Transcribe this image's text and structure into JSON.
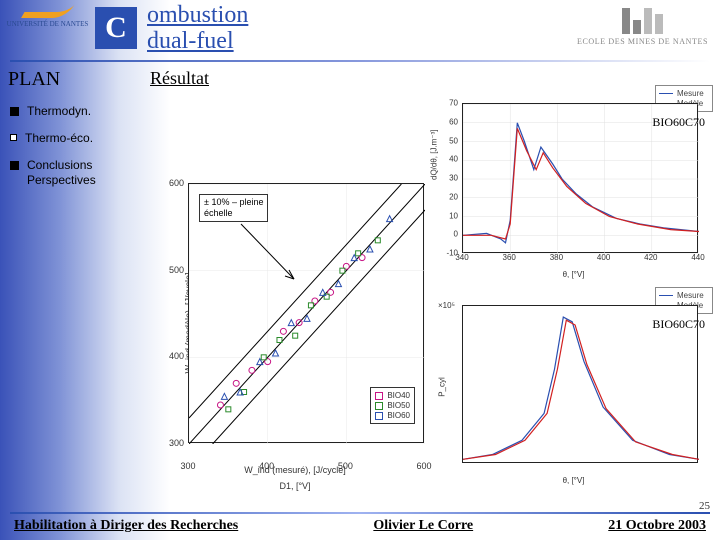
{
  "header": {
    "logo_left_text": "UNIVERSITÉ DE NANTES",
    "title_letter": "C",
    "title_rest": "ombustion\ndual-fuel",
    "logo_right_text": "ECOLE DES MINES DE NANTES"
  },
  "plan": {
    "title": "PLAN",
    "subtitle": "Résultat",
    "items": [
      {
        "label": "Thermodyn.",
        "filled": true
      },
      {
        "label": "Thermo-éco.",
        "filled": false
      },
      {
        "label": "Conclusions\nPerspectives",
        "filled": true
      }
    ]
  },
  "labels": {
    "bio1": "BIO60C70",
    "bio2": "BIO60C70"
  },
  "chart_top_right": {
    "type": "line",
    "legend": [
      {
        "label": "Mesure",
        "color": "#2a4fb0"
      },
      {
        "label": "Modèle",
        "color": "#d22020"
      }
    ],
    "xlabel": "θ, [°V]",
    "ylabel": "dQ/dθ, [J.m⁻³]",
    "xlim": [
      340,
      440
    ],
    "xticks": [
      340,
      360,
      380,
      400,
      420,
      440
    ],
    "ylim": [
      -10,
      70
    ],
    "yticks": [
      -10,
      0,
      10,
      20,
      30,
      40,
      50,
      60,
      70
    ],
    "series": {
      "mesure": {
        "color": "#2a4fb0",
        "points": [
          [
            340,
            0
          ],
          [
            350,
            1
          ],
          [
            356,
            -2
          ],
          [
            358,
            -4
          ],
          [
            360,
            8
          ],
          [
            363,
            60
          ],
          [
            366,
            50
          ],
          [
            370,
            35
          ],
          [
            373,
            47
          ],
          [
            378,
            38
          ],
          [
            382,
            30
          ],
          [
            388,
            22
          ],
          [
            395,
            15
          ],
          [
            405,
            9
          ],
          [
            415,
            6
          ],
          [
            425,
            4
          ],
          [
            440,
            2
          ]
        ]
      },
      "modele": {
        "color": "#d22020",
        "points": [
          [
            340,
            0
          ],
          [
            352,
            0
          ],
          [
            358,
            -2
          ],
          [
            360,
            6
          ],
          [
            363,
            57
          ],
          [
            367,
            45
          ],
          [
            371,
            35
          ],
          [
            374,
            44
          ],
          [
            378,
            36
          ],
          [
            384,
            26
          ],
          [
            392,
            17
          ],
          [
            402,
            10
          ],
          [
            414,
            6
          ],
          [
            428,
            3
          ],
          [
            440,
            2
          ]
        ]
      }
    }
  },
  "chart_bottom_right": {
    "type": "line",
    "legend": [
      {
        "label": "Mesure",
        "color": "#2a4fb0"
      },
      {
        "label": "Modèle",
        "color": "#d22020"
      }
    ],
    "xlabel": "θ, [°V]",
    "ylabel": "P_cyl",
    "y_exponent": "×10⁵",
    "xlim": [
      300,
      460
    ],
    "ylim": [
      0,
      10
    ],
    "series": {
      "mesure": {
        "color": "#2a4fb0",
        "points": [
          [
            300,
            0.3
          ],
          [
            320,
            0.6
          ],
          [
            340,
            1.5
          ],
          [
            355,
            3.2
          ],
          [
            362,
            6.0
          ],
          [
            368,
            9.3
          ],
          [
            374,
            9.0
          ],
          [
            382,
            6.5
          ],
          [
            395,
            3.6
          ],
          [
            415,
            1.5
          ],
          [
            440,
            0.6
          ],
          [
            460,
            0.3
          ]
        ]
      },
      "modele": {
        "color": "#d22020",
        "points": [
          [
            300,
            0.3
          ],
          [
            322,
            0.6
          ],
          [
            342,
            1.5
          ],
          [
            357,
            3.2
          ],
          [
            364,
            6.0
          ],
          [
            370,
            9.1
          ],
          [
            376,
            8.8
          ],
          [
            384,
            6.3
          ],
          [
            397,
            3.5
          ],
          [
            417,
            1.4
          ],
          [
            442,
            0.6
          ],
          [
            460,
            0.3
          ]
        ]
      }
    }
  },
  "chart_bottom_left": {
    "type": "scatter",
    "xlabel": "W_ind (mesuré), [J/cycle]",
    "ylabel": "W_ind (modèle), [J/cycle]",
    "xlim": [
      300,
      600
    ],
    "xticks": [
      300,
      400,
      500,
      600
    ],
    "ylim": [
      300,
      600
    ],
    "yticks": [
      300,
      400,
      500,
      600
    ],
    "annotation": "± 10% – pleine\néchelle",
    "annotation2": "D1, [°V]",
    "legend": [
      "BIO40",
      "BIO50",
      "BIO60"
    ],
    "fit_lines": {
      "main": {
        "color": "#000000",
        "from": [
          300,
          300
        ],
        "to": [
          600,
          600
        ]
      },
      "upper": {
        "color": "#000000",
        "from": [
          300,
          330
        ],
        "to": [
          570,
          600
        ]
      },
      "lower": {
        "color": "#000000",
        "from": [
          330,
          300
        ],
        "to": [
          600,
          570
        ]
      }
    },
    "series": [
      {
        "label": "BIO40",
        "marker": "circle",
        "color": "#c71585",
        "points": [
          [
            340,
            345
          ],
          [
            360,
            370
          ],
          [
            380,
            385
          ],
          [
            400,
            395
          ],
          [
            420,
            430
          ],
          [
            440,
            440
          ],
          [
            460,
            465
          ],
          [
            480,
            475
          ],
          [
            500,
            505
          ],
          [
            520,
            515
          ]
        ]
      },
      {
        "label": "BIO50",
        "marker": "square",
        "color": "#2a8a2a",
        "points": [
          [
            350,
            340
          ],
          [
            370,
            360
          ],
          [
            395,
            400
          ],
          [
            415,
            420
          ],
          [
            435,
            425
          ],
          [
            455,
            460
          ],
          [
            475,
            470
          ],
          [
            495,
            500
          ],
          [
            515,
            520
          ],
          [
            540,
            535
          ]
        ]
      },
      {
        "label": "BIO60",
        "marker": "triangle",
        "color": "#2a4fb0",
        "points": [
          [
            345,
            355
          ],
          [
            365,
            360
          ],
          [
            390,
            395
          ],
          [
            410,
            405
          ],
          [
            430,
            440
          ],
          [
            450,
            445
          ],
          [
            470,
            475
          ],
          [
            490,
            485
          ],
          [
            510,
            515
          ],
          [
            530,
            525
          ],
          [
            555,
            560
          ]
        ]
      }
    ]
  },
  "footer": {
    "left": "Habilitation à Diriger des Recherches",
    "center": "Olivier Le Corre",
    "right": "21 Octobre 2003"
  },
  "page_number": "25"
}
